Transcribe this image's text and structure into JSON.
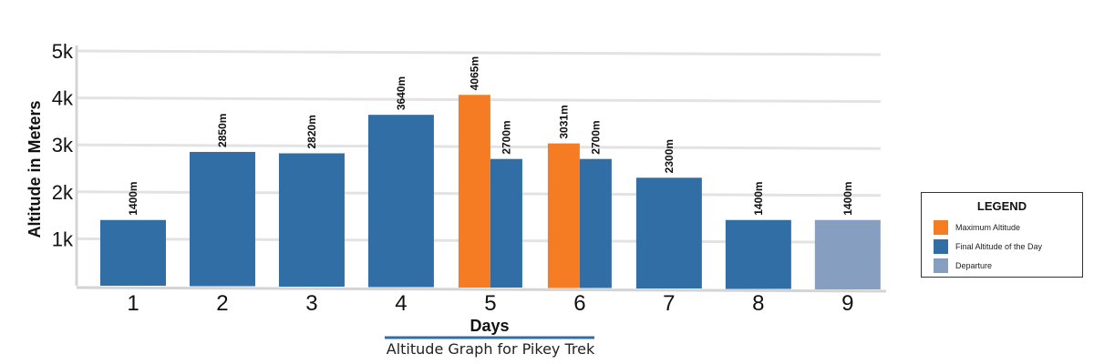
{
  "chart_data": {
    "type": "bar",
    "xlabel": "Days",
    "ylabel": "Altitude in Meters",
    "caption": "Altitude Graph for Pikey Trek",
    "ylim": [
      0,
      5000
    ],
    "yticks": [
      "1k",
      "2k",
      "3k",
      "4k",
      "5k"
    ],
    "grid": true,
    "legend_placement": "right",
    "legend_title": "LEGEND",
    "series": [
      {
        "name": "Maximum Altitude",
        "color": "#f57c22"
      },
      {
        "name": "Final Altitude of the Day",
        "color": "#326ea6"
      },
      {
        "name": "Departure",
        "color": "#869fc0"
      }
    ],
    "days": [
      {
        "day": "1",
        "bars": [
          {
            "series": "Final Altitude of the Day",
            "value": 1400,
            "label": "1400m"
          }
        ]
      },
      {
        "day": "2",
        "bars": [
          {
            "series": "Final Altitude of the Day",
            "value": 2850,
            "label": "2850m"
          }
        ]
      },
      {
        "day": "3",
        "bars": [
          {
            "series": "Final Altitude of the Day",
            "value": 2820,
            "label": "2820m"
          }
        ]
      },
      {
        "day": "4",
        "bars": [
          {
            "series": "Final Altitude of the Day",
            "value": 3640,
            "label": "3640m"
          }
        ]
      },
      {
        "day": "5",
        "bars": [
          {
            "series": "Maximum Altitude",
            "value": 4065,
            "label": "4065m"
          },
          {
            "series": "Final Altitude of the Day",
            "value": 2700,
            "label": "2700m"
          }
        ]
      },
      {
        "day": "6",
        "bars": [
          {
            "series": "Maximum Altitude",
            "value": 3031,
            "label": "3031m"
          },
          {
            "series": "Final Altitude of the Day",
            "value": 2700,
            "label": "2700m"
          }
        ]
      },
      {
        "day": "7",
        "bars": [
          {
            "series": "Final Altitude of the Day",
            "value": 2300,
            "label": "2300m"
          }
        ]
      },
      {
        "day": "8",
        "bars": [
          {
            "series": "Final Altitude of the Day",
            "value": 1400,
            "label": "1400m"
          }
        ]
      },
      {
        "day": "9",
        "bars": [
          {
            "series": "Departure",
            "value": 1400,
            "label": "1400m"
          }
        ]
      }
    ]
  }
}
